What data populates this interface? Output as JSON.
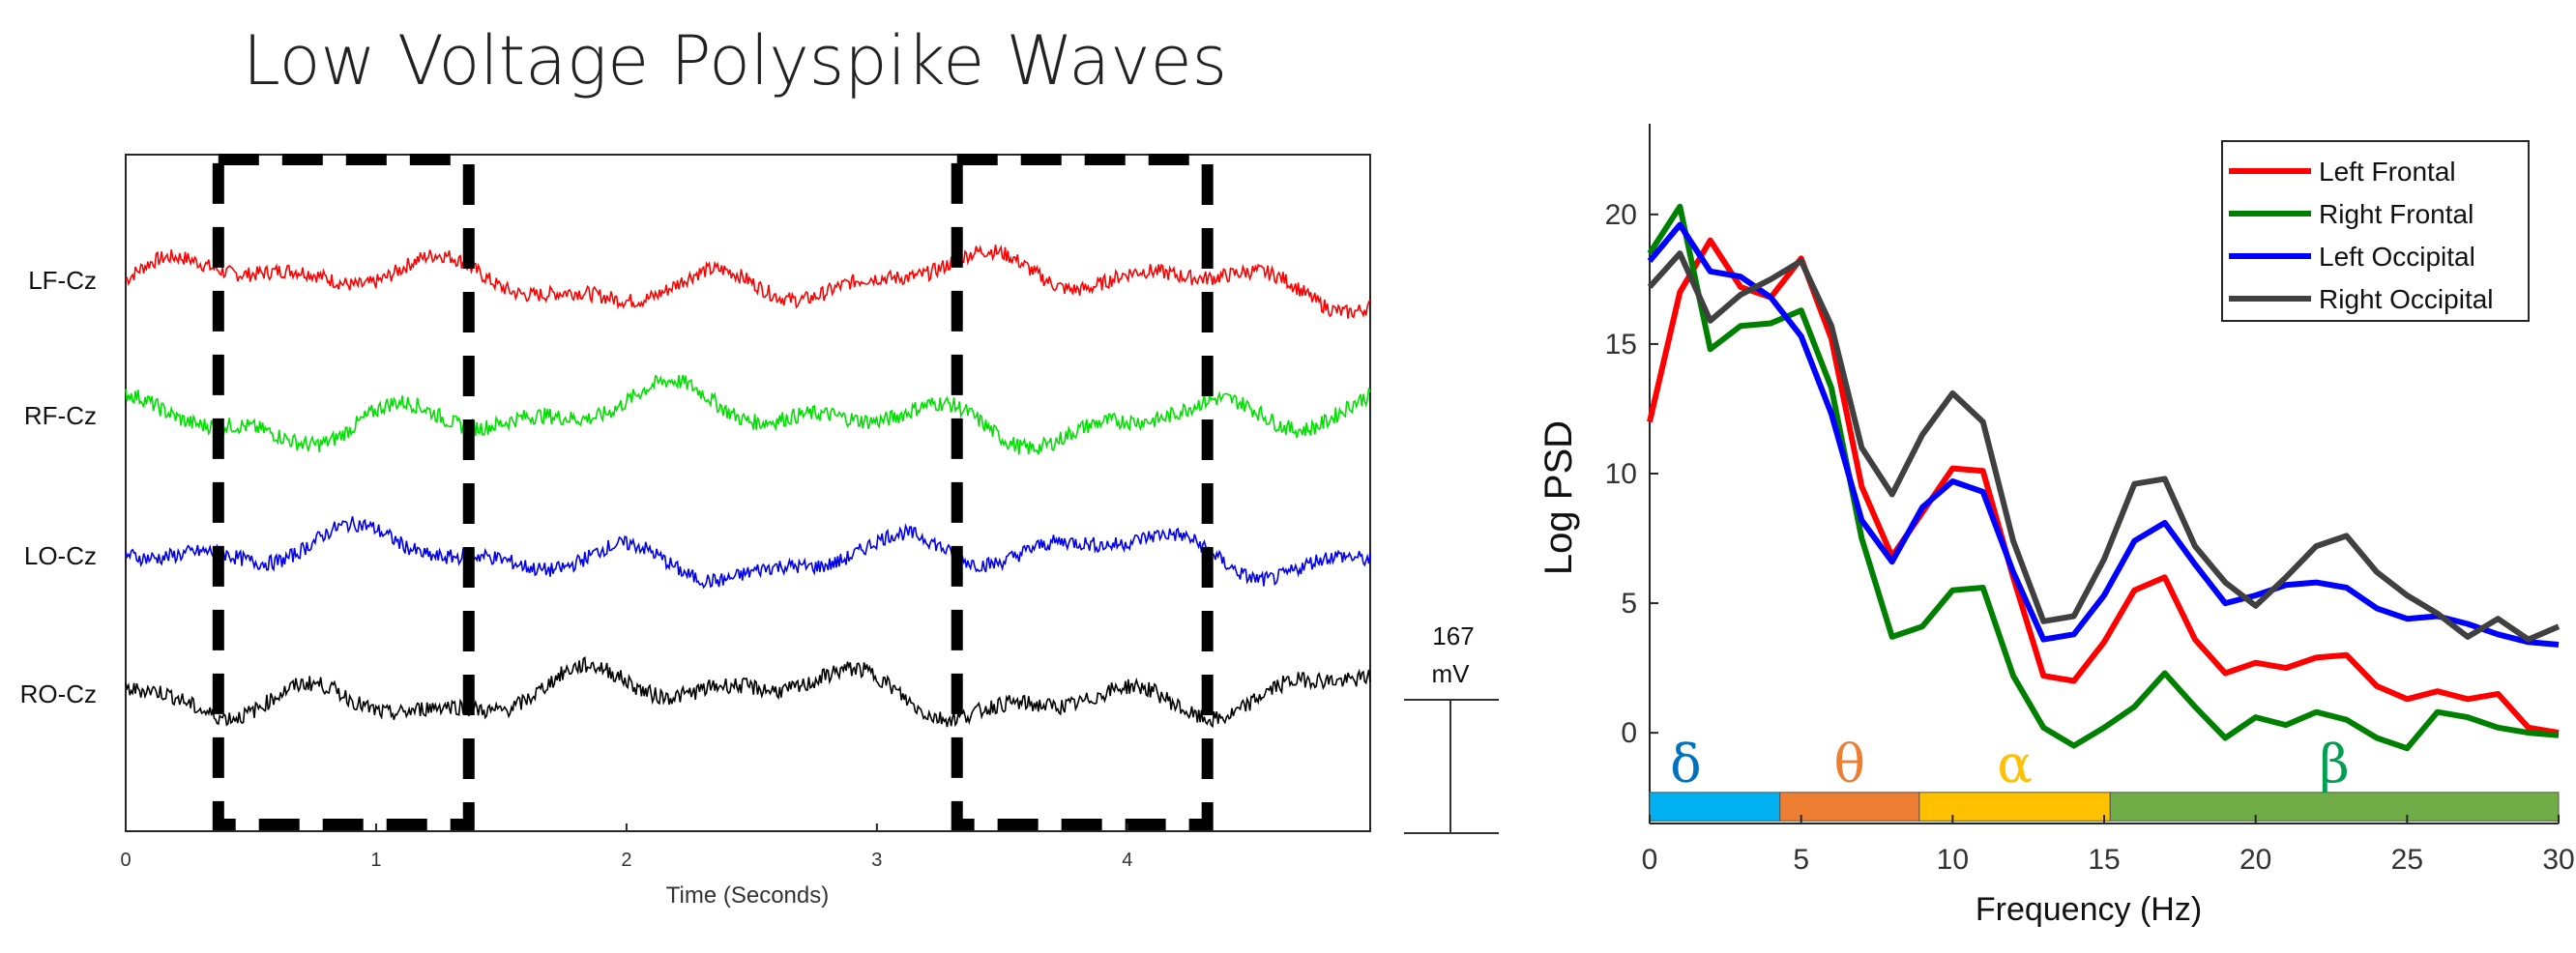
{
  "title": "Low Voltage Polyspike Waves",
  "eeg": {
    "channels": [
      {
        "label": "LF-Cz",
        "color": "#ff0000"
      },
      {
        "label": "RF-Cz",
        "color": "#00e000"
      },
      {
        "label": "LO-Cz",
        "color": "#0000ee"
      },
      {
        "label": "RO-Cz",
        "color": "#000000"
      }
    ],
    "x_ticks": [
      "0",
      "1",
      "2",
      "3",
      "4"
    ],
    "xlabel": "Time (Seconds)",
    "scale_value": "167",
    "scale_unit": "mV",
    "highlight_windows_seconds": [
      [
        0.37,
        1.37
      ],
      [
        3.32,
        4.32
      ]
    ]
  },
  "chart_data": {
    "type": "line",
    "xlabel": "Frequency (Hz)",
    "ylabel": "Log PSD",
    "xlim": [
      0,
      30
    ],
    "ylim": [
      -3.5,
      23.5
    ],
    "x_ticks": [
      "0",
      "5",
      "10",
      "15",
      "20",
      "25",
      "30"
    ],
    "y_ticks": [
      "0",
      "5",
      "10",
      "15",
      "20"
    ],
    "legend_position": "top-right",
    "x": [
      0,
      1,
      2,
      3,
      4,
      5,
      6,
      7,
      8,
      9,
      10,
      11,
      12,
      13,
      14,
      15,
      16,
      17,
      18,
      19,
      20,
      21,
      22,
      23,
      24,
      25,
      26,
      27,
      28,
      29,
      30
    ],
    "series": [
      {
        "name": "Left Frontal",
        "color": "#ff0000",
        "values": [
          12,
          17,
          19,
          17.2,
          16.8,
          18.3,
          15.2,
          9.5,
          6.8,
          8.5,
          10.2,
          10.1,
          6,
          2.2,
          2,
          3.5,
          5.5,
          6,
          3.6,
          2.3,
          2.7,
          2.5,
          2.9,
          3,
          1.8,
          1.3,
          1.6,
          1.3,
          1.5,
          0.2,
          0
        ]
      },
      {
        "name": "Right Frontal",
        "color": "#008000",
        "values": [
          18.5,
          20.3,
          14.8,
          15.7,
          15.8,
          16.3,
          13.3,
          7.5,
          3.7,
          4.1,
          5.5,
          5.6,
          2.2,
          0.2,
          -0.5,
          0.2,
          1,
          2.3,
          1,
          -0.2,
          0.6,
          0.3,
          0.8,
          0.5,
          -0.2,
          -0.6,
          0.8,
          0.6,
          0.2,
          0,
          -0.1
        ]
      },
      {
        "name": "Left Occipital",
        "color": "#0000ff",
        "values": [
          18.2,
          19.6,
          17.8,
          17.6,
          16.8,
          15.3,
          12.3,
          8.2,
          6.6,
          8.7,
          9.7,
          9.3,
          6.2,
          3.6,
          3.8,
          5.3,
          7.4,
          8.1,
          6.5,
          5,
          5.3,
          5.7,
          5.8,
          5.6,
          4.8,
          4.4,
          4.5,
          4.2,
          3.8,
          3.5,
          3.4
        ]
      },
      {
        "name": "Right Occipital",
        "color": "#404040",
        "values": [
          17.2,
          18.5,
          15.9,
          16.9,
          17.5,
          18.2,
          15.7,
          11,
          9.2,
          11.5,
          13.1,
          12,
          7.4,
          4.3,
          4.5,
          6.7,
          9.6,
          9.8,
          7.2,
          5.8,
          4.9,
          6,
          7.2,
          7.6,
          6.2,
          5.3,
          4.6,
          3.7,
          4.4,
          3.6,
          4.1
        ]
      }
    ],
    "bands": [
      {
        "symbol": "δ",
        "from": 0,
        "to": 4.3,
        "color": "#00b0f0",
        "text_color": "#0070c0"
      },
      {
        "symbol": "θ",
        "from": 4.3,
        "to": 8.9,
        "color": "#ed7d31",
        "text_color": "#ed7d31"
      },
      {
        "symbol": "α",
        "from": 8.9,
        "to": 15.2,
        "color": "#ffc000",
        "text_color": "#ffc000"
      },
      {
        "symbol": "β",
        "from": 15.2,
        "to": 30,
        "color": "#70ad47",
        "text_color": "#00a050"
      }
    ]
  }
}
